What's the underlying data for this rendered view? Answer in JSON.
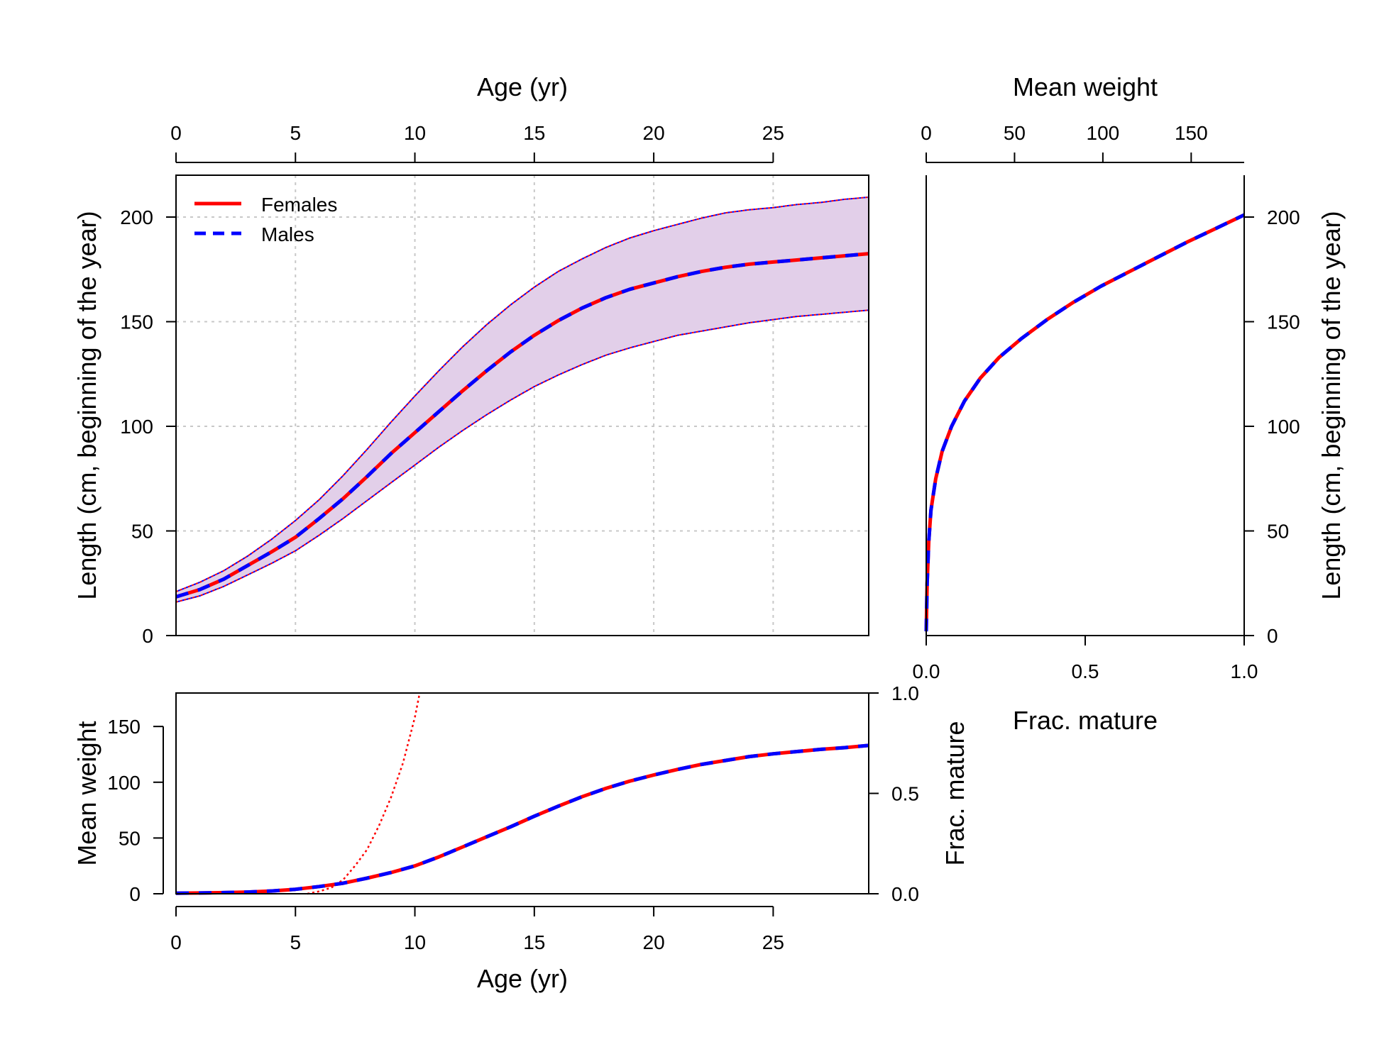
{
  "colors": {
    "females": "#ff0000",
    "males": "#0000ff",
    "band_fill": "#e2cfe9",
    "grid": "#c8c8c8",
    "axis": "#000000"
  },
  "chart_data": [
    {
      "id": "length-at-age",
      "type": "line",
      "xlabel": "Age (yr)",
      "ylabel": "Length (cm, beginning of the year)",
      "xlim": [
        0,
        29
      ],
      "ylim": [
        0,
        220
      ],
      "x_ticks": [
        "0",
        "5",
        "10",
        "15",
        "20",
        "25"
      ],
      "y_ticks": [
        "0",
        "50",
        "100",
        "150",
        "200"
      ],
      "x_axis_position": "top",
      "grid": true,
      "legend_position": "top-left",
      "legend": [
        {
          "label": "Females",
          "color": "#ff0000",
          "style": "solid"
        },
        {
          "label": "Males",
          "color": "#0000ff",
          "style": "dashed"
        }
      ],
      "x": [
        0,
        1,
        2,
        3,
        4,
        5,
        6,
        7,
        8,
        9,
        10,
        11,
        12,
        13,
        14,
        15,
        16,
        17,
        18,
        19,
        20,
        21,
        22,
        23,
        24,
        25,
        26,
        27,
        28,
        29
      ],
      "series": [
        {
          "name": "Females",
          "values": [
            18.5,
            22,
            27,
            33.5,
            40,
            47,
            56,
            65.5,
            76,
            87,
            97,
            107,
            117,
            126.5,
            135.5,
            143.5,
            150.5,
            156.5,
            161.5,
            165.5,
            168.5,
            171.5,
            174,
            176,
            177.5,
            178.5,
            179.5,
            180.5,
            181.5,
            182.5
          ]
        },
        {
          "name": "Males",
          "values": [
            18.5,
            22,
            27,
            33.5,
            40,
            47,
            56,
            65.5,
            76,
            87,
            97,
            107,
            117,
            126.5,
            135.5,
            143.5,
            150.5,
            156.5,
            161.5,
            165.5,
            168.5,
            171.5,
            174,
            176,
            177.5,
            178.5,
            179.5,
            180.5,
            181.5,
            182.5
          ]
        }
      ],
      "band_upper": [
        21,
        25.5,
        31,
        38,
        46,
        55,
        65,
        76.5,
        89,
        102,
        114.5,
        126.5,
        138,
        148.5,
        158,
        166.5,
        174,
        180,
        185.5,
        190,
        193.5,
        196.5,
        199.5,
        202,
        203.5,
        204.5,
        206,
        207,
        208.5,
        209.5
      ],
      "band_lower": [
        16,
        19,
        23.5,
        29,
        34.5,
        40.5,
        48,
        56,
        64.5,
        73,
        81.5,
        90,
        98,
        105.5,
        112.5,
        119,
        124.5,
        129.5,
        134,
        137.5,
        140.5,
        143.5,
        145.5,
        147.5,
        149.5,
        151,
        152.5,
        153.5,
        154.5,
        155.5
      ]
    },
    {
      "id": "weight-at-age",
      "type": "line",
      "xlabel": "Age (yr)",
      "ylabel": "Mean weight",
      "ylabel_right": "Frac. mature",
      "xlim": [
        0,
        29
      ],
      "ylim": [
        0,
        180
      ],
      "ylim_right": [
        0,
        1
      ],
      "x_ticks": [
        "0",
        "5",
        "10",
        "15",
        "20",
        "25"
      ],
      "y_ticks": [
        "0",
        "50",
        "100",
        "150"
      ],
      "y_ticks_right": [
        "0.0",
        "0.5",
        "1.0"
      ],
      "x": [
        0,
        1,
        2,
        3,
        4,
        5,
        6,
        7,
        8,
        9,
        10,
        11,
        12,
        13,
        14,
        15,
        16,
        17,
        18,
        19,
        20,
        21,
        22,
        23,
        24,
        25,
        26,
        27,
        28,
        29
      ],
      "series": [
        {
          "name": "Females",
          "values": [
            0.5,
            0.7,
            1,
            1.5,
            2.5,
            4,
            6.5,
            9.5,
            14,
            19,
            25,
            33,
            42,
            51,
            60,
            69.5,
            78.5,
            87,
            94.5,
            101,
            106.5,
            111.5,
            116,
            119.5,
            123,
            125.5,
            127.5,
            129.5,
            131,
            133
          ]
        },
        {
          "name": "Males",
          "values": [
            0.5,
            0.7,
            1,
            1.5,
            2.5,
            4,
            6.5,
            9.5,
            14,
            19,
            25,
            33,
            42,
            51,
            60,
            69.5,
            78.5,
            87,
            94.5,
            101,
            106.5,
            111.5,
            116,
            119.5,
            123,
            125.5,
            127.5,
            129.5,
            131,
            133
          ]
        }
      ],
      "maturity": {
        "name": "Females",
        "axis": "right",
        "x": [
          5.5,
          6,
          6.5,
          7,
          7.5,
          8,
          8.5,
          9,
          9.5,
          10,
          10.2
        ],
        "values": [
          0,
          0.012,
          0.03,
          0.07,
          0.14,
          0.22,
          0.34,
          0.48,
          0.65,
          0.88,
          1.0
        ]
      }
    },
    {
      "id": "length-vs-weight-maturity",
      "type": "line",
      "xlabel_top": "Mean weight",
      "xlabel_bottom": "Frac. mature",
      "ylabel": "Length (cm, beginning of the year)",
      "xlim_top": [
        0,
        180
      ],
      "xlim_bottom": [
        0,
        1
      ],
      "ylim": [
        0,
        220
      ],
      "x_ticks_top": [
        "0",
        "50",
        "100",
        "150"
      ],
      "x_ticks_bottom": [
        "0.0",
        "0.5",
        "1.0"
      ],
      "y_ticks": [
        "0",
        "50",
        "100",
        "150",
        "200"
      ],
      "x": [
        0,
        0.003,
        0.008,
        0.015,
        0.03,
        0.05,
        0.08,
        0.12,
        0.17,
        0.23,
        0.3,
        0.38,
        0.46,
        0.55,
        0.64,
        0.73,
        0.82,
        0.91,
        1.0
      ],
      "series": [
        {
          "name": "Females",
          "values": [
            2,
            25,
            45,
            60,
            75,
            88,
            100,
            112,
            123,
            133,
            142,
            151,
            159,
            167,
            174,
            181,
            188,
            194.5,
            201
          ]
        },
        {
          "name": "Males",
          "values": [
            2,
            25,
            45,
            60,
            75,
            88,
            100,
            112,
            123,
            133,
            142,
            151,
            159,
            167,
            174,
            181,
            188,
            194.5,
            201
          ]
        }
      ]
    }
  ]
}
